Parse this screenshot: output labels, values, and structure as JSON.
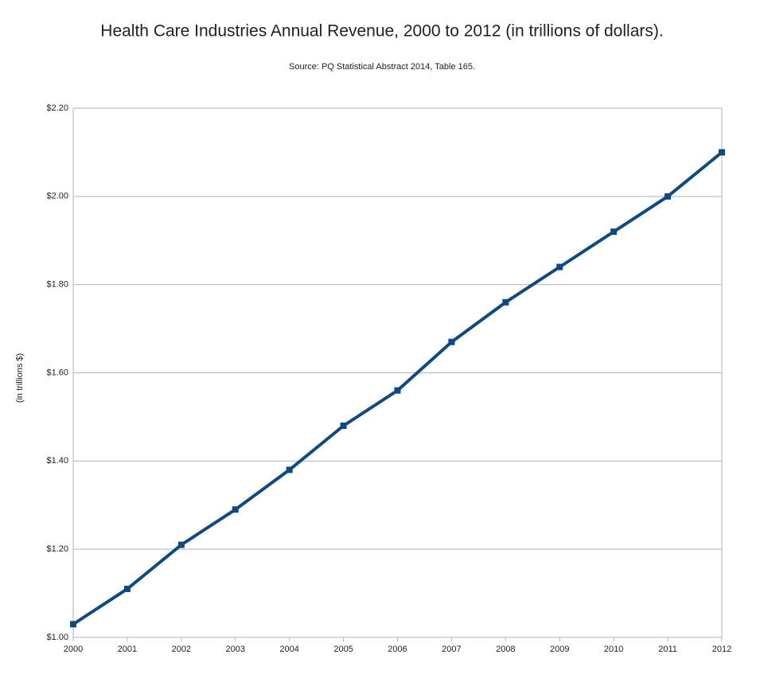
{
  "chart_data": {
    "type": "line",
    "title": "Health Care Industries Annual Revenue, 2000 to 2012 (in trillions of dollars).",
    "subtitle": "Source: PQ Statistical Abstract 2014, Table 165.",
    "y_label": "(in trillions $)",
    "x": [
      2000,
      2001,
      2002,
      2003,
      2004,
      2005,
      2006,
      2007,
      2008,
      2009,
      2010,
      2011,
      2012
    ],
    "series": [
      {
        "color": "#0d4a84",
        "values": [
          1.03,
          1.11,
          1.21,
          1.29,
          1.38,
          1.48,
          1.56,
          1.67,
          1.76,
          1.84,
          1.92,
          2.0,
          2.1
        ]
      }
    ],
    "xlim": [
      2000,
      2012
    ],
    "xticks": [
      2000,
      2001,
      2002,
      2003,
      2004,
      2005,
      2006,
      2007,
      2008,
      2009,
      2010,
      2011,
      2012
    ],
    "ylim": [
      1.0,
      2.2
    ],
    "yticks": [
      {
        "value": 1.0,
        "label": "$1.00"
      },
      {
        "value": 1.2,
        "label": "$1.20"
      },
      {
        "value": 1.4,
        "label": "$1.40"
      },
      {
        "value": 1.6,
        "label": "$1.60"
      },
      {
        "value": 1.8,
        "label": "$1.80"
      },
      {
        "value": 2.0,
        "label": "$2.00"
      },
      {
        "value": 2.2,
        "label": "$2.20"
      }
    ],
    "grid": true
  }
}
